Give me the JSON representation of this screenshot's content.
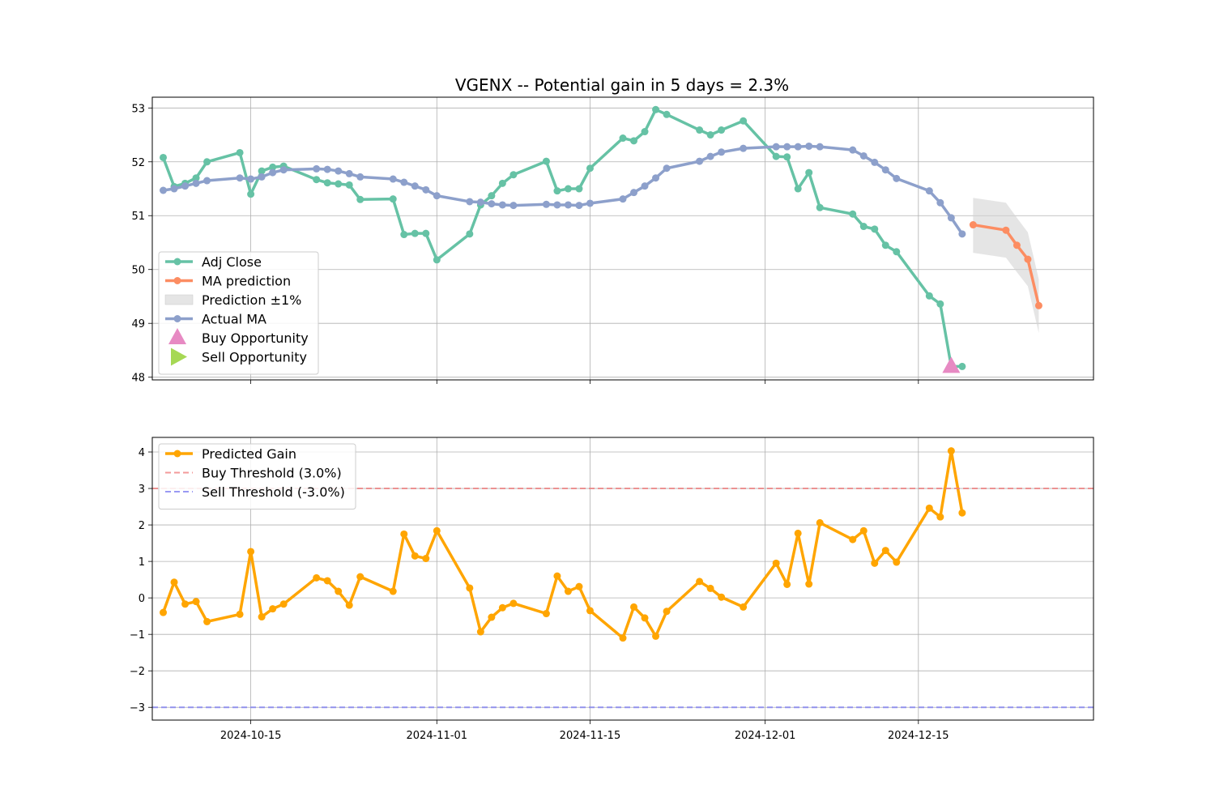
{
  "chart_data": [
    {
      "type": "line",
      "title": "VGENX -- Potential gain in 5 days = 2.3%",
      "xlabel": "",
      "ylabel": "",
      "ylim": [
        47.95,
        53.2
      ],
      "yticks": [
        48,
        49,
        50,
        51,
        52,
        53
      ],
      "ytick_labels": [
        "48",
        "49",
        "50",
        "51",
        "52",
        "53"
      ],
      "grid": true,
      "legend_position": "lower-left",
      "x_date_range": [
        "2024-10-06",
        "2024-12-31"
      ],
      "xticks": [
        "2024-10-15",
        "2024-11-01",
        "2024-11-15",
        "2024-12-01",
        "2024-12-15"
      ],
      "series": [
        {
          "name": "Adj Close",
          "color": "#66c2a5",
          "x": [
            "2024-10-07",
            "2024-10-08",
            "2024-10-09",
            "2024-10-10",
            "2024-10-11",
            "2024-10-14",
            "2024-10-15",
            "2024-10-16",
            "2024-10-17",
            "2024-10-18",
            "2024-10-21",
            "2024-10-22",
            "2024-10-23",
            "2024-10-24",
            "2024-10-25",
            "2024-10-28",
            "2024-10-29",
            "2024-10-30",
            "2024-10-31",
            "2024-11-01",
            "2024-11-04",
            "2024-11-05",
            "2024-11-06",
            "2024-11-07",
            "2024-11-08",
            "2024-11-11",
            "2024-11-12",
            "2024-11-13",
            "2024-11-14",
            "2024-11-15",
            "2024-11-18",
            "2024-11-19",
            "2024-11-20",
            "2024-11-21",
            "2024-11-22",
            "2024-11-25",
            "2024-11-26",
            "2024-11-27",
            "2024-11-29",
            "2024-12-02",
            "2024-12-03",
            "2024-12-04",
            "2024-12-05",
            "2024-12-06",
            "2024-12-09",
            "2024-12-10",
            "2024-12-11",
            "2024-12-12",
            "2024-12-13",
            "2024-12-16",
            "2024-12-17",
            "2024-12-18",
            "2024-12-19"
          ],
          "values": [
            52.08,
            51.54,
            51.6,
            51.7,
            52.0,
            52.17,
            51.4,
            51.83,
            51.9,
            51.92,
            51.67,
            51.61,
            51.59,
            51.57,
            51.3,
            51.31,
            50.65,
            50.67,
            50.67,
            50.18,
            50.66,
            51.2,
            51.37,
            51.6,
            51.76,
            52.01,
            51.46,
            51.5,
            51.5,
            51.88,
            52.44,
            52.39,
            52.56,
            52.97,
            52.88,
            52.59,
            52.5,
            52.59,
            52.76,
            52.1,
            52.09,
            51.5,
            51.8,
            51.15,
            51.03,
            50.8,
            50.75,
            50.45,
            50.33,
            49.51,
            49.36,
            48.2,
            48.2
          ]
        },
        {
          "name": "MA prediction",
          "color": "#fc8d62",
          "x": [
            "2024-12-20",
            "2024-12-23",
            "2024-12-24",
            "2024-12-25",
            "2024-12-26"
          ],
          "values": [
            50.83,
            50.73,
            50.45,
            50.19,
            49.33
          ]
        },
        {
          "name": "Prediction ±1%",
          "type": "area",
          "color": "#d3d3d3",
          "x": [
            "2024-12-20",
            "2024-12-23",
            "2024-12-24",
            "2024-12-25",
            "2024-12-26"
          ],
          "lower": [
            50.31,
            50.22,
            49.95,
            49.69,
            48.82
          ],
          "upper": [
            51.33,
            51.24,
            50.96,
            50.69,
            49.82
          ]
        },
        {
          "name": "Actual MA",
          "color": "#8da0cb",
          "x": [
            "2024-10-07",
            "2024-10-08",
            "2024-10-09",
            "2024-10-10",
            "2024-10-11",
            "2024-10-14",
            "2024-10-15",
            "2024-10-16",
            "2024-10-17",
            "2024-10-18",
            "2024-10-21",
            "2024-10-22",
            "2024-10-23",
            "2024-10-24",
            "2024-10-25",
            "2024-10-28",
            "2024-10-29",
            "2024-10-30",
            "2024-10-31",
            "2024-11-01",
            "2024-11-04",
            "2024-11-05",
            "2024-11-06",
            "2024-11-07",
            "2024-11-08",
            "2024-11-11",
            "2024-11-12",
            "2024-11-13",
            "2024-11-14",
            "2024-11-15",
            "2024-11-18",
            "2024-11-19",
            "2024-11-20",
            "2024-11-21",
            "2024-11-22",
            "2024-11-25",
            "2024-11-26",
            "2024-11-27",
            "2024-11-29",
            "2024-12-02",
            "2024-12-03",
            "2024-12-04",
            "2024-12-05",
            "2024-12-06",
            "2024-12-09",
            "2024-12-10",
            "2024-12-11",
            "2024-12-12",
            "2024-12-13",
            "2024-12-16",
            "2024-12-17",
            "2024-12-18",
            "2024-12-19"
          ],
          "values": [
            51.47,
            51.5,
            51.55,
            51.6,
            51.65,
            51.7,
            51.68,
            51.72,
            51.8,
            51.85,
            51.87,
            51.86,
            51.83,
            51.78,
            51.72,
            51.68,
            51.62,
            51.55,
            51.48,
            51.37,
            51.26,
            51.25,
            51.22,
            51.2,
            51.19,
            51.21,
            51.2,
            51.2,
            51.19,
            51.23,
            51.31,
            51.43,
            51.55,
            51.7,
            51.88,
            52.01,
            52.1,
            52.18,
            52.25,
            52.28,
            52.28,
            52.28,
            52.29,
            52.28,
            52.22,
            52.11,
            51.99,
            51.85,
            51.69,
            51.46,
            51.24,
            50.96,
            50.66
          ]
        },
        {
          "name": "Buy Opportunity",
          "marker": "triangle-up",
          "color": "#e78ac3",
          "x": [
            "2024-12-18"
          ],
          "values": [
            48.2
          ]
        },
        {
          "name": "Sell Opportunity",
          "marker": "triangle-right",
          "color": "#a6d854",
          "x": [],
          "values": []
        }
      ]
    },
    {
      "type": "line",
      "title": "",
      "xlabel": "",
      "ylabel": "",
      "ylim": [
        -3.35,
        4.4
      ],
      "yticks": [
        -3,
        -2,
        -1,
        0,
        1,
        2,
        3,
        4
      ],
      "ytick_labels": [
        "−3",
        "−2",
        "−1",
        "0",
        "1",
        "2",
        "3",
        "4"
      ],
      "grid": true,
      "legend_position": "upper-left",
      "x_date_range": [
        "2024-10-06",
        "2024-12-31"
      ],
      "xticks": [
        "2024-10-15",
        "2024-11-01",
        "2024-11-15",
        "2024-12-01",
        "2024-12-15"
      ],
      "xtick_labels": [
        "2024-10-15",
        "2024-11-01",
        "2024-11-15",
        "2024-12-01",
        "2024-12-15"
      ],
      "series": [
        {
          "name": "Predicted Gain",
          "color": "#ffa500",
          "x": [
            "2024-10-07",
            "2024-10-08",
            "2024-10-09",
            "2024-10-10",
            "2024-10-11",
            "2024-10-14",
            "2024-10-15",
            "2024-10-16",
            "2024-10-17",
            "2024-10-18",
            "2024-10-21",
            "2024-10-22",
            "2024-10-23",
            "2024-10-24",
            "2024-10-25",
            "2024-10-28",
            "2024-10-29",
            "2024-10-30",
            "2024-10-31",
            "2024-11-01",
            "2024-11-04",
            "2024-11-05",
            "2024-11-06",
            "2024-11-07",
            "2024-11-08",
            "2024-11-11",
            "2024-11-12",
            "2024-11-13",
            "2024-11-14",
            "2024-11-15",
            "2024-11-18",
            "2024-11-19",
            "2024-11-20",
            "2024-11-21",
            "2024-11-22",
            "2024-11-25",
            "2024-11-26",
            "2024-11-27",
            "2024-11-29",
            "2024-12-02",
            "2024-12-03",
            "2024-12-04",
            "2024-12-05",
            "2024-12-06",
            "2024-12-09",
            "2024-12-10",
            "2024-12-11",
            "2024-12-12",
            "2024-12-13",
            "2024-12-16",
            "2024-12-17",
            "2024-12-18",
            "2024-12-19"
          ],
          "values": [
            -0.4,
            0.43,
            -0.17,
            -0.1,
            -0.65,
            -0.45,
            1.27,
            -0.52,
            -0.3,
            -0.17,
            0.55,
            0.47,
            0.18,
            -0.2,
            0.58,
            0.18,
            1.75,
            1.15,
            1.08,
            1.84,
            0.27,
            -0.93,
            -0.53,
            -0.27,
            -0.15,
            -0.43,
            0.6,
            0.18,
            0.31,
            -0.35,
            -1.1,
            -0.25,
            -0.55,
            -1.05,
            -0.37,
            0.45,
            0.26,
            0.02,
            -0.25,
            0.95,
            0.37,
            1.77,
            0.38,
            2.06,
            1.6,
            1.84,
            0.95,
            1.3,
            0.98,
            2.46,
            2.22,
            4.03,
            2.33
          ]
        },
        {
          "name": "Buy Threshold (3.0%)",
          "type": "hline",
          "dash": "dashed",
          "color": "#f08080",
          "value": 3.0
        },
        {
          "name": "Sell Threshold (-3.0%)",
          "type": "hline",
          "dash": "dashed",
          "color": "#8080f0",
          "value": -3.0
        }
      ]
    }
  ]
}
